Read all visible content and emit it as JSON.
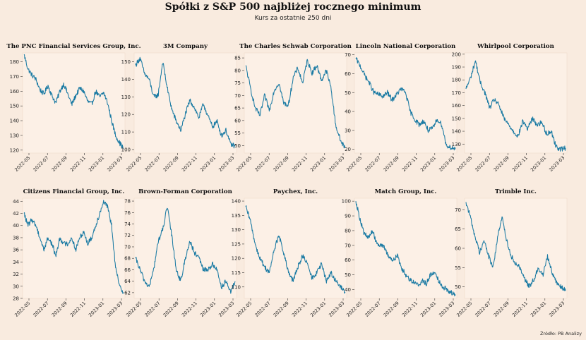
{
  "title": "Spółki z S&P 500 najbliżej rocznego minimum",
  "subtitle": "Kurs za ostatnie 250 dni",
  "source": "Źródło: PB Analizy",
  "colors": {
    "background": "#f9ebdf",
    "plot_background": "#fcf0e6",
    "line": "#1a7aa3"
  },
  "x_tick_labels": [
    "2022-05",
    "2022-07",
    "2022-09",
    "2022-11",
    "2023-01",
    "2023-03"
  ],
  "chart_data": [
    {
      "type": "line",
      "title": "The PNC Financial Services Group, Inc.",
      "ylim": [
        118,
        186
      ],
      "yticks": [
        120,
        130,
        140,
        150,
        160,
        170,
        180
      ],
      "anchors": [
        185,
        175,
        171,
        168,
        161,
        158,
        164,
        157,
        152,
        160,
        165,
        158,
        151,
        157,
        162,
        160,
        153,
        151,
        160,
        156,
        159,
        152,
        140,
        130,
        125,
        121
      ]
    },
    {
      "type": "line",
      "title": "3M Company",
      "ylim": [
        98,
        155
      ],
      "yticks": [
        100,
        110,
        120,
        130,
        140,
        150
      ],
      "anchors": [
        148,
        152,
        143,
        140,
        130,
        131,
        150,
        135,
        123,
        116,
        111,
        120,
        128,
        124,
        118,
        126,
        119,
        113,
        116,
        108,
        111,
        103,
        102
      ]
    },
    {
      "type": "line",
      "title": "The Charles Schwab Corporation",
      "ylim": [
        47,
        87
      ],
      "yticks": [
        50,
        55,
        60,
        65,
        70,
        75,
        80,
        85
      ],
      "anchors": [
        82,
        73,
        65,
        62,
        70,
        64,
        72,
        75,
        67,
        66,
        77,
        81,
        75,
        84,
        79,
        82,
        76,
        80,
        73,
        58,
        52,
        49
      ]
    },
    {
      "type": "line",
      "title": "Lincoln National Corporation",
      "ylim": [
        18,
        71
      ],
      "yticks": [
        20,
        30,
        40,
        50,
        60,
        70
      ],
      "anchors": [
        68,
        64,
        59,
        55,
        50,
        49,
        48,
        50,
        46,
        49,
        52,
        50,
        40,
        36,
        33,
        35,
        30,
        31,
        36,
        33,
        22,
        21,
        20
      ]
    },
    {
      "type": "line",
      "title": "Whirlpool Corporation",
      "ylim": [
        123,
        201
      ],
      "yticks": [
        130,
        140,
        150,
        160,
        170,
        180,
        190,
        200
      ],
      "anchors": [
        173,
        182,
        195,
        178,
        170,
        158,
        165,
        160,
        150,
        145,
        140,
        136,
        148,
        142,
        150,
        145,
        147,
        138,
        140,
        128,
        126,
        127
      ]
    },
    {
      "type": "line",
      "title": "Citizens Financial Group, Inc.",
      "ylim": [
        28,
        44.5
      ],
      "yticks": [
        28,
        30,
        32,
        34,
        36,
        38,
        40,
        42,
        44
      ],
      "anchors": [
        42,
        40,
        41,
        40,
        38,
        36,
        38,
        37,
        35,
        38,
        37,
        37,
        38,
        36,
        38,
        39,
        37,
        38,
        40,
        42,
        44,
        43,
        40,
        33,
        30,
        29
      ]
    },
    {
      "type": "line",
      "title": "Brown-Forman Corporation",
      "ylim": [
        61,
        78.5
      ],
      "yticks": [
        62,
        64,
        66,
        68,
        70,
        72,
        74,
        76,
        78
      ],
      "anchors": [
        68,
        66,
        64,
        63,
        66,
        71,
        73,
        77,
        72,
        66,
        64,
        68,
        71,
        69,
        68,
        66,
        66,
        67,
        66,
        63,
        64,
        62,
        64
      ]
    },
    {
      "type": "line",
      "title": "Paychex, Inc.",
      "ylim": [
        106,
        141
      ],
      "yticks": [
        110,
        115,
        120,
        125,
        130,
        135,
        140
      ],
      "anchors": [
        138,
        133,
        125,
        120,
        117,
        115,
        123,
        128,
        122,
        115,
        112,
        117,
        121,
        118,
        113,
        115,
        118,
        112,
        115,
        112,
        110,
        108
      ]
    },
    {
      "type": "line",
      "title": "Match Group, Inc.",
      "ylim": [
        34,
        102
      ],
      "yticks": [
        40,
        50,
        60,
        70,
        80,
        90,
        100
      ],
      "anchors": [
        100,
        88,
        78,
        75,
        80,
        72,
        70,
        68,
        62,
        60,
        63,
        55,
        50,
        47,
        45,
        43,
        46,
        44,
        50,
        52,
        46,
        42,
        40,
        38,
        36
      ]
    },
    {
      "type": "line",
      "title": "Trimble Inc.",
      "ylim": [
        47,
        73
      ],
      "yticks": [
        50,
        55,
        60,
        65,
        70
      ],
      "anchors": [
        72,
        68,
        63,
        59,
        62,
        58,
        55,
        63,
        68,
        62,
        58,
        56,
        55,
        52,
        50,
        52,
        55,
        53,
        58,
        54,
        51,
        50,
        49
      ]
    }
  ]
}
